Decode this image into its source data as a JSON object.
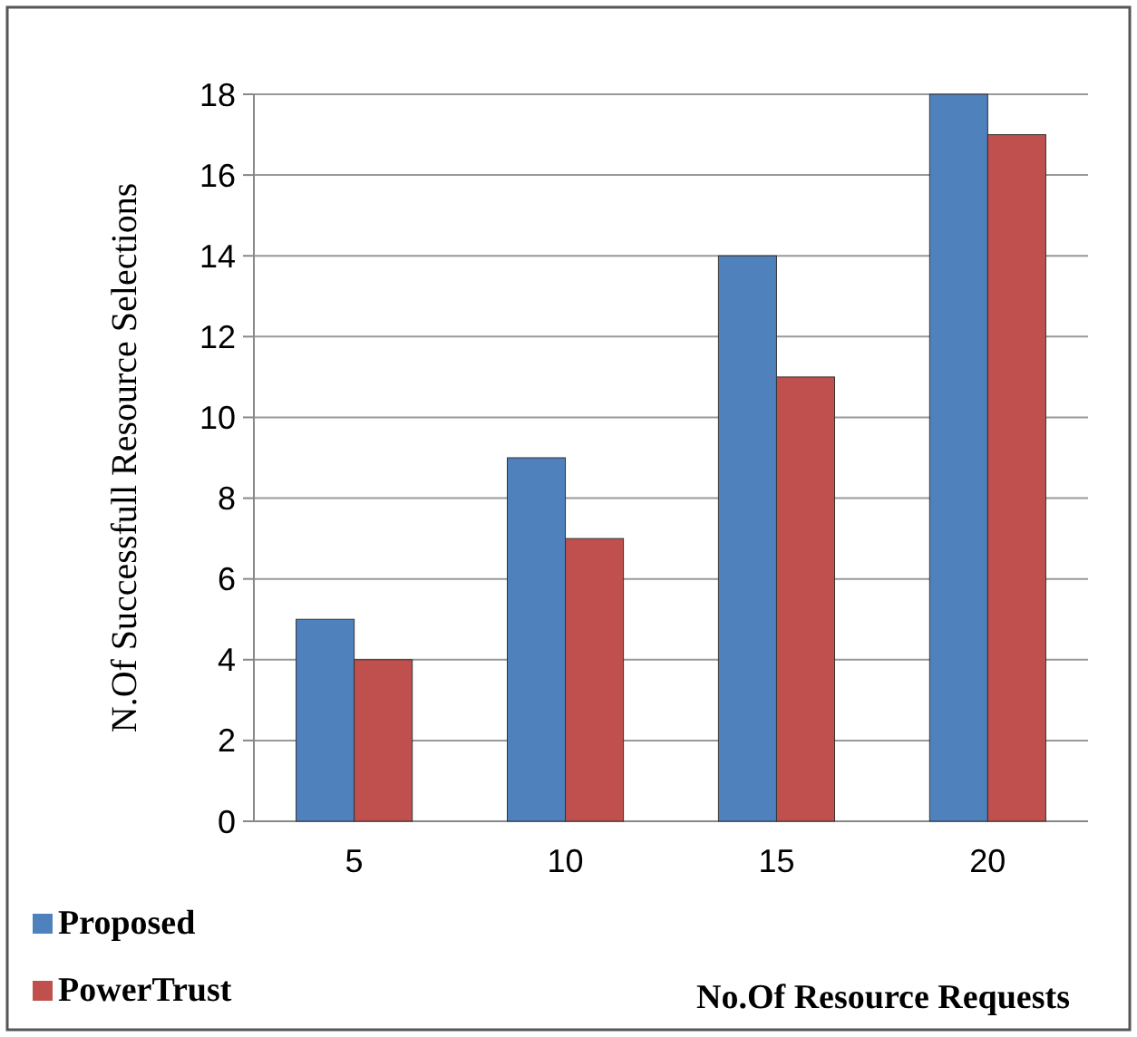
{
  "chart_data": {
    "type": "bar",
    "xlabel": "No.Of Resource Requests",
    "ylabel": "N.Of Successfull Resource Selections",
    "categories": [
      "5",
      "10",
      "15",
      "20"
    ],
    "series": [
      {
        "name": "Proposed",
        "color": "#4f81bd",
        "values": [
          5,
          9,
          14,
          18
        ]
      },
      {
        "name": "PowerTrust",
        "color": "#c0504d",
        "values": [
          4,
          7,
          11,
          17
        ]
      }
    ],
    "ylim": [
      0,
      18
    ],
    "yticks": [
      0,
      2,
      4,
      6,
      8,
      10,
      12,
      14,
      16,
      18
    ],
    "grid": "y",
    "legend": "bottom left"
  }
}
